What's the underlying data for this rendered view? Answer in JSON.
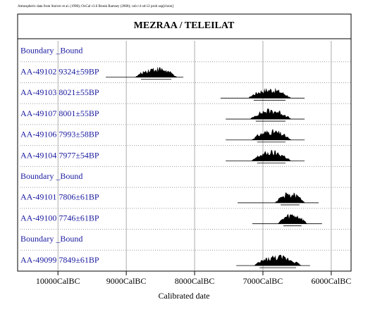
{
  "chart_data": {
    "type": "oxcal",
    "note_header": "Atmospheric data from Stuiver et al. (1998); OxCal v3.6 Bronk Ramsey (2000); cub r:4 sd:12 prob usp[chron]",
    "title": "MEZRAA / TELEILAT",
    "xlabel": "Calibrated date",
    "xlim": [
      10590,
      5710
    ],
    "xticks": [
      {
        "value": 10000,
        "label": "10000CalBC"
      },
      {
        "value": 9000,
        "label": "9000CalBC"
      },
      {
        "value": 8000,
        "label": "8000CalBC"
      },
      {
        "value": 7000,
        "label": "7000CalBC"
      },
      {
        "value": 6000,
        "label": "6000CalBC"
      }
    ],
    "grid": true,
    "color": "#000000",
    "label_color": "#1a1aa0",
    "rows": [
      {
        "label": "Boundary _Bound"
      },
      {
        "label": "AA-49102  9324±59BP",
        "range": [
          9300,
          8165
        ],
        "hump": [
          8785,
          8340
        ]
      },
      {
        "label": "AA-49103  8021±55BP",
        "range": [
          7620,
          6390
        ],
        "hump": [
          7135,
          6670
        ]
      },
      {
        "label": "AA-49107  8001±55BP",
        "range": [
          7545,
          6390
        ],
        "hump": [
          7105,
          6670
        ]
      },
      {
        "label": "AA-49106  7993±58BP",
        "range": [
          7545,
          6390
        ],
        "hump": [
          7085,
          6670
        ]
      },
      {
        "label": "AA-49104  7977±54BP",
        "range": [
          7545,
          6390
        ],
        "hump": [
          7085,
          6670
        ]
      },
      {
        "label": "Boundary _Bound"
      },
      {
        "label": "AA-49101  7806±61BP",
        "range": [
          7370,
          6185
        ],
        "hump": [
          6740,
          6465
        ]
      },
      {
        "label": "AA-49100  7746±61BP",
        "range": [
          7155,
          6135
        ],
        "hump": [
          6700,
          6435
        ]
      },
      {
        "label": "Boundary _Bound"
      },
      {
        "label": "AA-49099  7849±61BP",
        "range": [
          7390,
          6310
        ],
        "hump": [
          7050,
          6515
        ]
      }
    ]
  }
}
